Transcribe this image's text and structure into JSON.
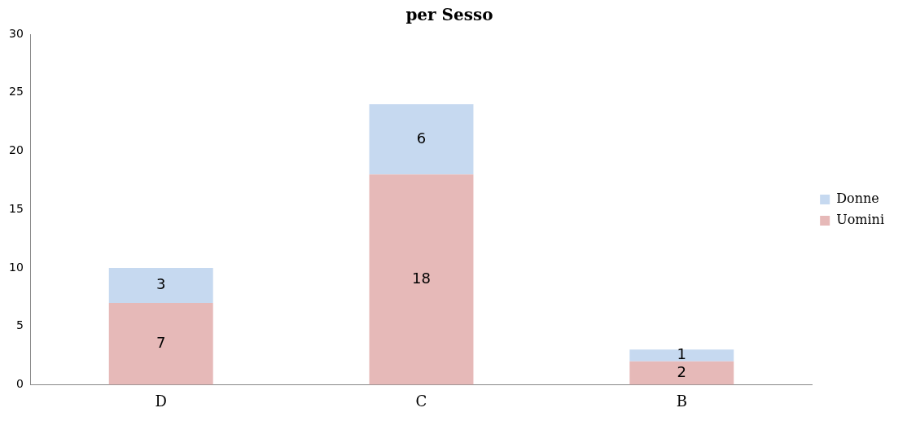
{
  "chart_data": {
    "type": "bar",
    "title": "per Sesso",
    "categories": [
      "D",
      "C",
      "B"
    ],
    "stacked": true,
    "series": [
      {
        "name": "Uomini",
        "color": "#e6b9b8",
        "values": [
          7,
          18,
          2
        ]
      },
      {
        "name": "Donne",
        "color": "#c6d9f0",
        "values": [
          3,
          6,
          1
        ]
      }
    ],
    "ylim": [
      0,
      30
    ],
    "yticks": [
      0,
      5,
      10,
      15,
      20,
      25,
      30
    ],
    "grid": false,
    "legend": "right",
    "data_labels": true
  }
}
